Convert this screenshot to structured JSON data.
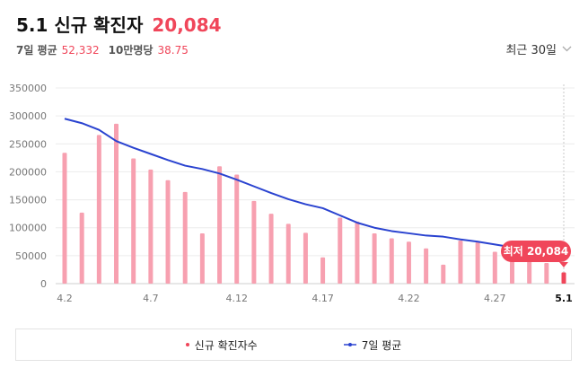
{
  "header": {
    "title": "5.1 신규 확진자",
    "total": "20,084"
  },
  "subheader": {
    "avg7_label": "7일 평균",
    "avg7_value": "52,332",
    "per100k_label": "10만명당",
    "per100k_value": "38.75"
  },
  "range": {
    "label": "최근 30일"
  },
  "legend": {
    "new_cases": "신규 확진자수",
    "avg7": "7일 평균"
  },
  "tooltip": {
    "label": "최저",
    "value": "20,084"
  },
  "colors": {
    "bar": "#f7a0b0",
    "bar_last": "#f0465a",
    "line": "#2a43d0",
    "accent": "#f0465a"
  },
  "chart_data": {
    "type": "bar",
    "x_ticks": [
      "4.2",
      "4.7",
      "4.12",
      "4.17",
      "4.22",
      "4.27",
      "5.1"
    ],
    "categories": [
      "4.2",
      "4.3",
      "4.4",
      "4.5",
      "4.6",
      "4.7",
      "4.8",
      "4.9",
      "4.10",
      "4.11",
      "4.12",
      "4.13",
      "4.14",
      "4.15",
      "4.16",
      "4.17",
      "4.18",
      "4.19",
      "4.20",
      "4.21",
      "4.22",
      "4.23",
      "4.24",
      "4.25",
      "4.26",
      "4.27",
      "4.28",
      "4.29",
      "4.30",
      "5.1"
    ],
    "series": [
      {
        "type": "bar",
        "name": "신규 확진자수",
        "values": [
          234000,
          127000,
          266000,
          286000,
          224000,
          204000,
          185000,
          164000,
          90000,
          210000,
          195000,
          148000,
          125000,
          107000,
          91000,
          47000,
          118000,
          111000,
          90000,
          81000,
          75000,
          63000,
          34000,
          77000,
          74000,
          57000,
          50000,
          43000,
          37000,
          20084
        ]
      },
      {
        "type": "line",
        "name": "7일 평균",
        "values": [
          295000,
          287000,
          275000,
          255000,
          243000,
          232000,
          221000,
          211000,
          205000,
          197000,
          186000,
          174000,
          162000,
          151000,
          142000,
          135000,
          122000,
          109000,
          100000,
          94000,
          90000,
          86000,
          84000,
          79000,
          75000,
          70000,
          65000,
          60000,
          56000,
          52332
        ]
      }
    ],
    "y_ticks": [
      0,
      50000,
      100000,
      150000,
      200000,
      250000,
      300000,
      350000
    ],
    "ylim": [
      0,
      350000
    ],
    "grid": true,
    "legend_position": "bottom"
  }
}
